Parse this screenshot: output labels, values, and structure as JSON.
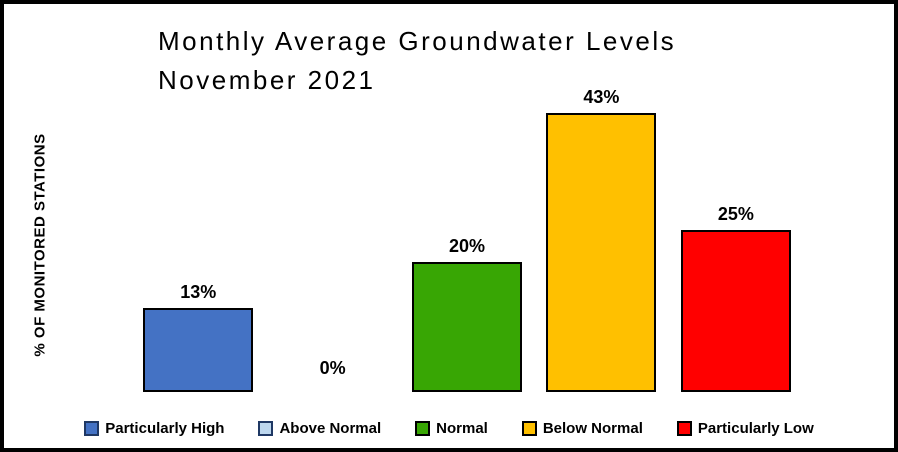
{
  "frame": {
    "background": "#FFFFFF",
    "border_color": "#000000"
  },
  "chart_data": {
    "type": "bar",
    "title": "Monthly Average Groundwater Levels November 2021",
    "title_line1": "Monthly Average Groundwater Levels",
    "title_line2": "November 2021",
    "xlabel": "",
    "ylabel": "% OF MONITORED STATIONS",
    "categories": [
      "Particularly High",
      "Above Normal",
      "Normal",
      "Below Normal",
      "Particularly Low"
    ],
    "values": [
      13,
      0,
      20,
      43,
      25
    ],
    "data_labels": [
      "13%",
      "0%",
      "20%",
      "43%",
      "25%"
    ],
    "bar_colors": [
      "#4472C4",
      "#BDD7EE",
      "#38A604",
      "#FFC000",
      "#FF0000"
    ],
    "bar_border_color": "#000000",
    "ylim": [
      0,
      45
    ],
    "grid": false,
    "axis_ticks_visible": false,
    "legend_position": "bottom"
  },
  "legend": {
    "items": [
      {
        "label": "Particularly High",
        "fill": "#4472C4",
        "border": "#1F3864"
      },
      {
        "label": "Above Normal",
        "fill": "#BDD7EE",
        "border": "#1F3864"
      },
      {
        "label": "Normal",
        "fill": "#38A604",
        "border": "#000000"
      },
      {
        "label": "Below Normal",
        "fill": "#FFC000",
        "border": "#000000"
      },
      {
        "label": "Particularly Low",
        "fill": "#FF0000",
        "border": "#000000"
      }
    ]
  }
}
